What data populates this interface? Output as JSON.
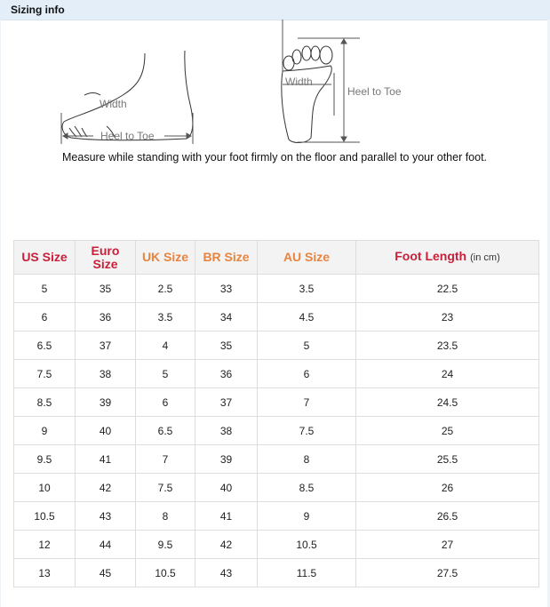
{
  "header": {
    "title": "Sizing info"
  },
  "diagram": {
    "side_width": "Width",
    "side_length": "Heel to Toe",
    "top_width": "Width",
    "top_length": "Heel to Toe"
  },
  "note": "Measure while standing with your foot firmly on the floor and parallel to your other foot.",
  "colors": {
    "header_red": "#c8203a",
    "header_orange": "#e8843f",
    "title_bar": "#e3eef9"
  },
  "table": {
    "headers": [
      {
        "label": "US Size",
        "color": "red"
      },
      {
        "label": "Euro Size",
        "color": "red"
      },
      {
        "label": "UK Size",
        "color": "orange"
      },
      {
        "label": "BR Size",
        "color": "orange"
      },
      {
        "label": "AU Size",
        "color": "orange"
      },
      {
        "label": "Foot Length",
        "unit": "(in cm)",
        "color": "red"
      }
    ],
    "rows": [
      [
        "5",
        "35",
        "2.5",
        "33",
        "3.5",
        "22.5"
      ],
      [
        "6",
        "36",
        "3.5",
        "34",
        "4.5",
        "23"
      ],
      [
        "6.5",
        "37",
        "4",
        "35",
        "5",
        "23.5"
      ],
      [
        "7.5",
        "38",
        "5",
        "36",
        "6",
        "24"
      ],
      [
        "8.5",
        "39",
        "6",
        "37",
        "7",
        "24.5"
      ],
      [
        "9",
        "40",
        "6.5",
        "38",
        "7.5",
        "25"
      ],
      [
        "9.5",
        "41",
        "7",
        "39",
        "8",
        "25.5"
      ],
      [
        "10",
        "42",
        "7.5",
        "40",
        "8.5",
        "26"
      ],
      [
        "10.5",
        "43",
        "8",
        "41",
        "9",
        "26.5"
      ],
      [
        "12",
        "44",
        "9.5",
        "42",
        "10.5",
        "27"
      ],
      [
        "13",
        "45",
        "10.5",
        "43",
        "11.5",
        "27.5"
      ]
    ]
  }
}
